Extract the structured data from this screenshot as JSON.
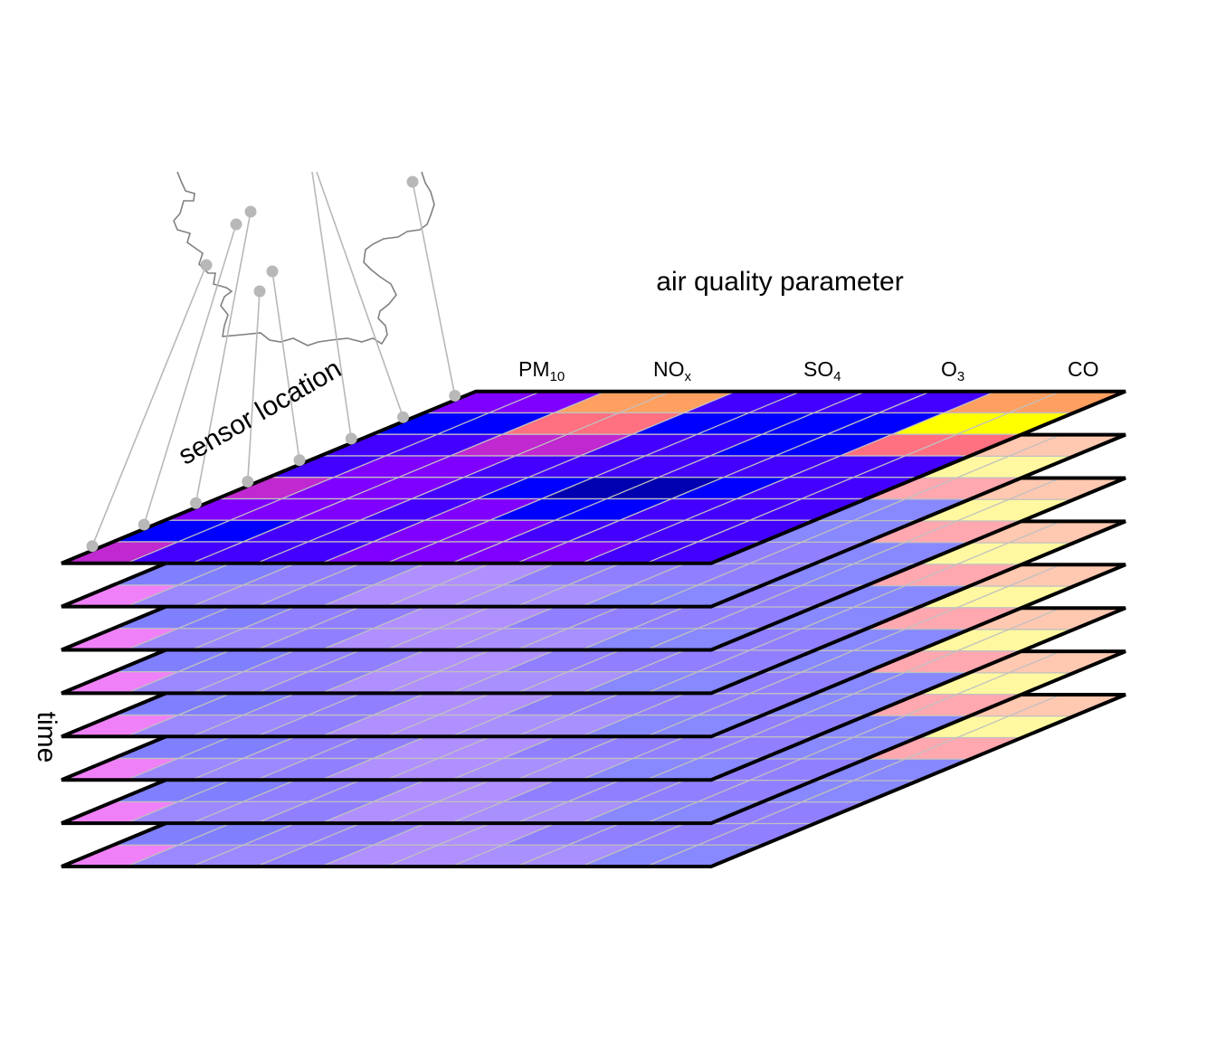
{
  "labels": {
    "parameter_axis": "air quality parameter",
    "location_axis": "sensor location",
    "time_axis": "time"
  },
  "parameters": [
    {
      "base": "PM",
      "sub": "10"
    },
    {
      "base": "NO",
      "sub": "x"
    },
    {
      "base": "SO",
      "sub": "4"
    },
    {
      "base": "O",
      "sub": "3"
    },
    {
      "base": "CO",
      "sub": ""
    }
  ],
  "colors": {
    "outline": "#000000",
    "gridline": "#c0c0c0",
    "sensor_dot": "#b8b8b8",
    "border": "#808080"
  },
  "top_layer_cells": [
    [
      "#8000ff",
      "#8000ff",
      "#ffa060",
      "#ffa060",
      "#4400ff",
      "#4400ff",
      "#4400ff",
      "#4400ff",
      "#ffa060",
      "#ffa060"
    ],
    [
      "#0000ff",
      "#0000ff",
      "#ff7080",
      "#ff7080",
      "#0000ff",
      "#0000ff",
      "#0000ff",
      "#0000ff",
      "#ffff00",
      "#ffff00"
    ],
    [
      "#4400ff",
      "#4400ff",
      "#c028d0",
      "#c028d0",
      "#4400ff",
      "#4400ff",
      "#0000ff",
      "#0000ff",
      "#ff7080",
      "#ff7080"
    ],
    [
      "#4400ff",
      "#8000ff",
      "#8000ff",
      "#4400ff",
      "#4400ff",
      "#4400ff",
      "#4400ff",
      "#4400ff",
      "#4400ff",
      "#4400ff"
    ],
    [
      "#c028d0",
      "#8000ff",
      "#8000ff",
      "#4400ff",
      "#0000ff",
      "#0000b0",
      "#0000b0",
      "#0000ff",
      "#4400ff",
      "#4400ff"
    ],
    [
      "#8000ff",
      "#8000ff",
      "#8000ff",
      "#4400ff",
      "#8000ff",
      "#0000ff",
      "#0000ff",
      "#4400ff",
      "#4400ff",
      "#4400ff"
    ],
    [
      "#0000ff",
      "#0000ff",
      "#4400ff",
      "#4400ff",
      "#8000ff",
      "#8000ff",
      "#4400ff",
      "#4400ff",
      "#4400ff",
      "#4400ff"
    ],
    [
      "#c028d0",
      "#4400ff",
      "#4400ff",
      "#4400ff",
      "#8000ff",
      "#8000ff",
      "#8000ff",
      "#8000ff",
      "#4400ff",
      "#4400ff"
    ]
  ],
  "lower_layer_cells": [
    [
      "#8a80ff",
      "#8a80ff",
      "#ffb8a8",
      "#ffb8a8",
      "#8a80ff",
      "#8a80ff",
      "#9090ff",
      "#9090ff",
      "#ffc8b0",
      "#ffc8b0"
    ],
    [
      "#7878ff",
      "#7878ff",
      "#ffb0b8",
      "#ffb0b8",
      "#7878ff",
      "#7878ff",
      "#7878ff",
      "#7878ff",
      "#fff8a0",
      "#fff8a0"
    ],
    [
      "#9080ff",
      "#9080ff",
      "#d090f0",
      "#d090f0",
      "#9080ff",
      "#9080ff",
      "#8888ff",
      "#8888ff",
      "#ffa8b0",
      "#ffa8b0"
    ],
    [
      "#9080ff",
      "#b090ff",
      "#b090ff",
      "#9080ff",
      "#9080ff",
      "#9080ff",
      "#9080ff",
      "#9080ff",
      "#8888ff",
      "#8888ff"
    ],
    [
      "#d888f8",
      "#b090ff",
      "#b090ff",
      "#8888ff",
      "#8080ff",
      "#7070ff",
      "#7070ff",
      "#8080ff",
      "#8888ff",
      "#8888ff"
    ],
    [
      "#b090ff",
      "#b090ff",
      "#b090ff",
      "#9080ff",
      "#b090ff",
      "#8888ff",
      "#8888ff",
      "#9080ff",
      "#9080ff",
      "#9080ff"
    ],
    [
      "#8080ff",
      "#8080ff",
      "#9080ff",
      "#9080ff",
      "#b090ff",
      "#b090ff",
      "#9080ff",
      "#9080ff",
      "#9080ff",
      "#9080ff"
    ],
    [
      "#f080f8",
      "#9c88ff",
      "#9c88ff",
      "#9080ff",
      "#b090ff",
      "#b090ff",
      "#a890ff",
      "#a890ff",
      "#8888ff",
      "#8888ff"
    ]
  ]
}
